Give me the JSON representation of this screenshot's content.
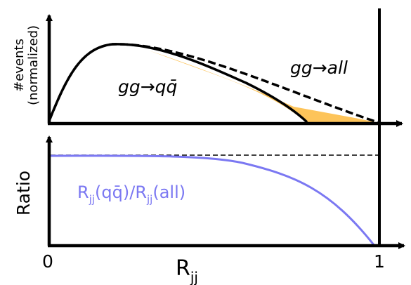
{
  "top_panel": {
    "ylabel_line1": "#events",
    "ylabel_line2": "(normalized)",
    "curve_qq_label": "gg→qq̄",
    "curve_all_label": "gg→all",
    "fill_color": "#FDC45A",
    "line_color": "#000000"
  },
  "bottom_panel": {
    "ylabel": "Ratio",
    "ratio_label": "R_jj(qq̄)/R_jj(all)",
    "ratio_color": "#7B78F2"
  },
  "x_axis": {
    "label": "R_jj",
    "tick_start": "0",
    "tick_end": "1"
  }
}
